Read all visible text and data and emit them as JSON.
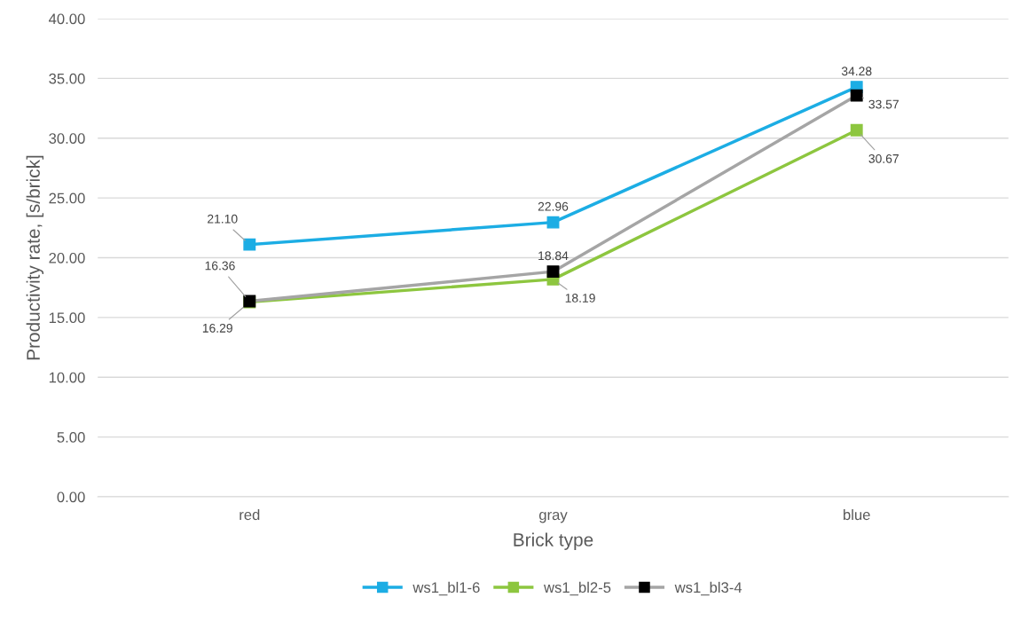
{
  "chart_data": {
    "type": "line",
    "xlabel": "Brick type",
    "ylabel": "Productivity rate, [s/brick]",
    "categories": [
      "red",
      "gray",
      "blue"
    ],
    "series": [
      {
        "name": "ws1_bl1-6",
        "color": "#1cadE4",
        "values": [
          21.1,
          22.96,
          34.28
        ],
        "value_labels": [
          "21.10",
          "22.96",
          "34.28"
        ]
      },
      {
        "name": "ws1_bl2-5",
        "color": "#8dc63f",
        "values": [
          16.29,
          18.19,
          30.67
        ],
        "value_labels": [
          "16.29",
          "18.19",
          "30.67"
        ]
      },
      {
        "name": "ws1_bl3-4",
        "color": "#a5a5a5",
        "colors": [
          "#000000",
          "#000000",
          "#000000"
        ],
        "values": [
          16.36,
          18.84,
          33.57
        ],
        "value_labels": [
          "16.36",
          "18.84",
          "33.57"
        ]
      }
    ],
    "ylim": [
      0,
      40
    ],
    "yticks": [
      {
        "value": 0,
        "label": "0.00"
      },
      {
        "value": 5,
        "label": "5.00"
      },
      {
        "value": 10,
        "label": "10.00"
      },
      {
        "value": 15,
        "label": "15.00"
      },
      {
        "value": 20,
        "label": "20.00"
      },
      {
        "value": 25,
        "label": "25.00"
      },
      {
        "value": 30,
        "label": "30.00"
      },
      {
        "value": 35,
        "label": "35.00"
      },
      {
        "value": 40,
        "label": "40.00"
      }
    ],
    "grid": "y",
    "legend": "bottom",
    "marker": "square",
    "line_style": "solid"
  }
}
